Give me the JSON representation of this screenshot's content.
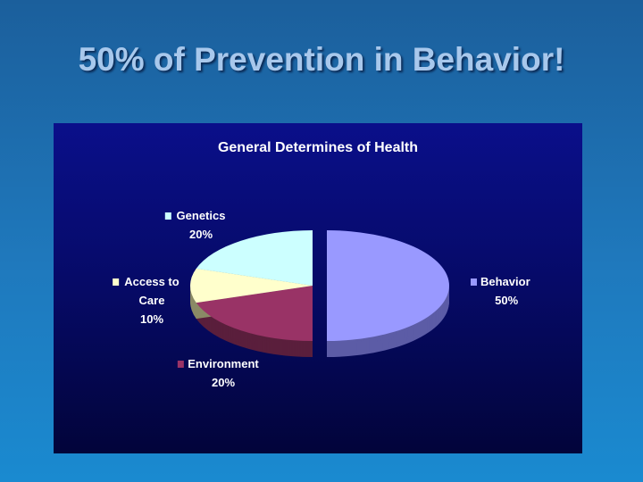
{
  "slide_title": "50% of Prevention in Behavior!",
  "chart_data": {
    "type": "pie",
    "title": "General Determines of Health",
    "style": "3d-exploded",
    "slices": [
      {
        "label": "Behavior",
        "value": 50,
        "value_label": "50%",
        "color": "#9999ff",
        "side": "#5c5ca6"
      },
      {
        "label": "Environment",
        "value": 20,
        "value_label": "20%",
        "color": "#993366",
        "side": "#5a1f3c"
      },
      {
        "label": "Access to Care",
        "label_lines": [
          "Access to",
          "Care"
        ],
        "value": 10,
        "value_label": "10%",
        "color": "#ffffcc",
        "side": "#8a8a66"
      },
      {
        "label": "Genetics",
        "value": 20,
        "value_label": "20%",
        "color": "#ccffff",
        "side": "#6e9090"
      }
    ]
  }
}
